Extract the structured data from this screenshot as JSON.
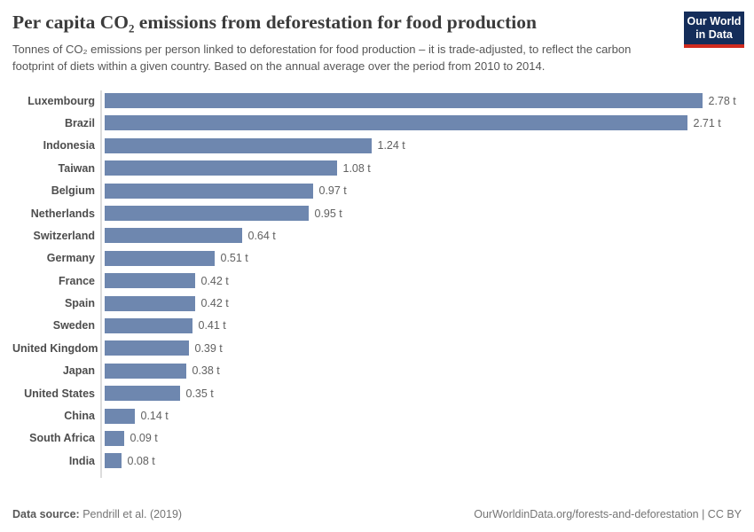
{
  "header": {
    "title": "Per capita CO₂ emissions from deforestation for food production",
    "subtitle": "Tonnes of CO₂ emissions per person linked to deforestation for food production – it is trade-adjusted, to reflect the carbon footprint of diets within a given country. Based on the annual average over the period from 2010 to 2014.",
    "logo": {
      "line1": "Our World",
      "line2": "in Data"
    }
  },
  "chart_data": {
    "type": "bar",
    "orientation": "horizontal",
    "title": "Per capita CO₂ emissions from deforestation for food production",
    "unit": "t",
    "categories": [
      "Luxembourg",
      "Brazil",
      "Indonesia",
      "Taiwan",
      "Belgium",
      "Netherlands",
      "Switzerland",
      "Germany",
      "France",
      "Spain",
      "Sweden",
      "United Kingdom",
      "Japan",
      "United States",
      "China",
      "South Africa",
      "India"
    ],
    "values": [
      2.78,
      2.71,
      1.24,
      1.08,
      0.97,
      0.95,
      0.64,
      0.51,
      0.42,
      0.42,
      0.41,
      0.39,
      0.38,
      0.35,
      0.14,
      0.09,
      0.08
    ],
    "value_labels": [
      "2.78 t",
      "2.71 t",
      "1.24 t",
      "1.08 t",
      "0.97 t",
      "0.95 t",
      "0.64 t",
      "0.51 t",
      "0.42 t",
      "0.42 t",
      "0.41 t",
      "0.39 t",
      "0.38 t",
      "0.35 t",
      "0.14 t",
      "0.09 t",
      "0.08 t"
    ],
    "xlim": [
      0,
      2.78
    ],
    "grid": false,
    "legend": "none",
    "bar_color": "#6e87af",
    "axis_color": "#dcdcdc"
  },
  "logo_colors": {
    "navy": "#142d5a",
    "red": "#d02a1e"
  },
  "footer": {
    "datasource_label": "Data source:",
    "datasource_value": " Pendrill et al. (2019)",
    "right_text": "OurWorldinData.org/forests-and-deforestation | CC BY"
  }
}
